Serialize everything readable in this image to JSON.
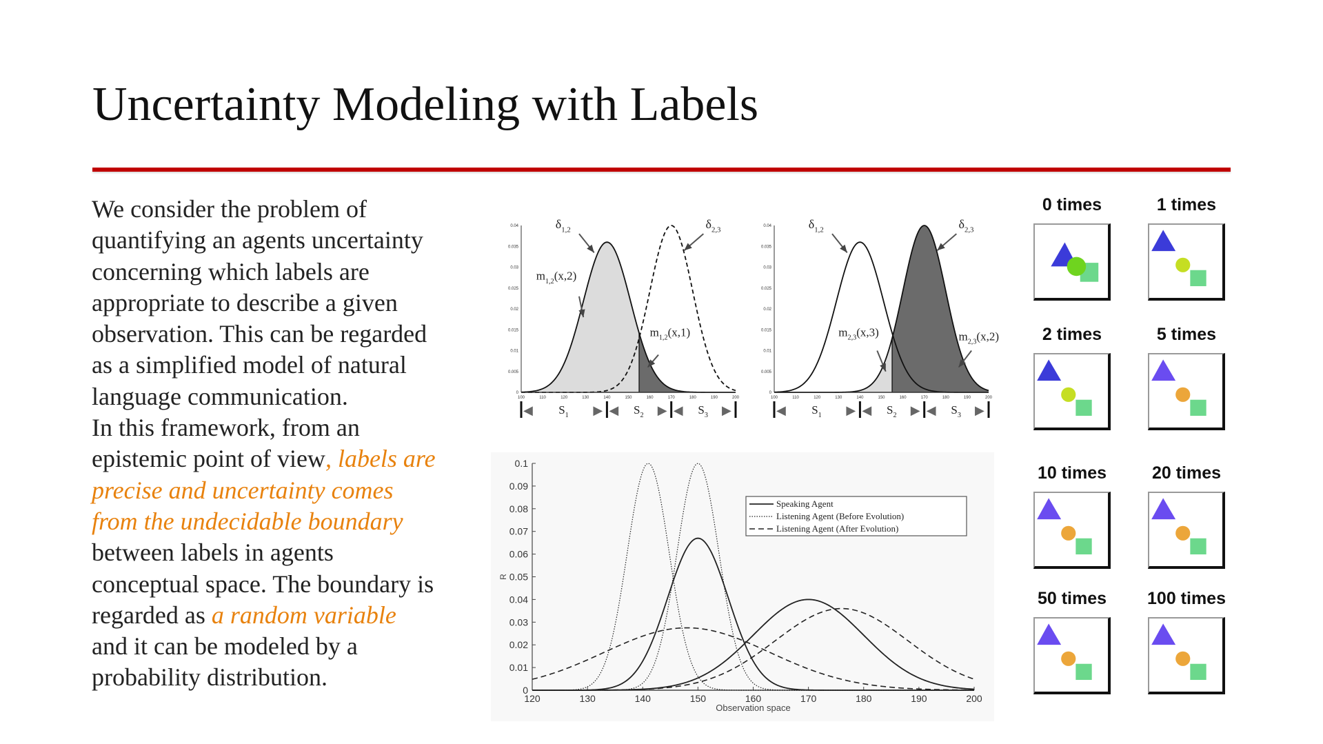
{
  "slide": {
    "title": "Uncertainty Modeling with Labels",
    "accent_color": "#c00000",
    "highlight_color": "#e8820e",
    "body_lines": [
      [
        {
          "t": "We consider the problem of"
        }
      ],
      [
        {
          "t": "quantifying an agents uncertainty"
        }
      ],
      [
        {
          "t": "concerning which labels are"
        }
      ],
      [
        {
          "t": "appropriate to describe a given"
        }
      ],
      [
        {
          "t": "observation. This can be regarded"
        }
      ],
      [
        {
          "t": "as a simplified model of natural"
        }
      ],
      [
        {
          "t": "language communication."
        }
      ],
      [
        {
          "t": "In this framework, from an"
        }
      ],
      [
        {
          "t": "epistemic point of view"
        },
        {
          "t": ", labels are",
          "hl": true
        }
      ],
      [
        {
          "t": "precise and uncertainty comes",
          "hl": true
        }
      ],
      [
        {
          "t": "from the undecidable boundary",
          "hl": true
        }
      ],
      [
        {
          "t": "between labels in agents"
        }
      ],
      [
        {
          "t": "conceptual space. The boundary is"
        }
      ],
      [
        {
          "t": "regarded as "
        },
        {
          "t": "a random variable",
          "hl": true
        }
      ],
      [
        {
          "t": "and it can be modeled by a"
        }
      ],
      [
        {
          "t": "probability distribution."
        }
      ]
    ]
  },
  "chart_data": [
    {
      "type": "area",
      "xlim": [
        100,
        200
      ],
      "ylim": [
        0,
        0.04
      ],
      "xticks": [
        "100",
        "110",
        "120",
        "130",
        "140",
        "150",
        "160",
        "170",
        "180",
        "190",
        "200"
      ],
      "yticks": [
        "0",
        "0.005",
        "0.01",
        "0.015",
        "0.02",
        "0.025",
        "0.03",
        "0.035",
        "0.04"
      ],
      "boundary": 155,
      "curves": [
        {
          "name": "δ1,2",
          "mean": 140,
          "sd": 11,
          "peak": 0.036,
          "style": "solid"
        },
        {
          "name": "δ2,3",
          "mean": 170,
          "sd": 10,
          "peak": 0.04,
          "style": "dashed"
        }
      ],
      "annotations": [
        {
          "base": "δ",
          "sub": "1,2"
        },
        {
          "base": "δ",
          "sub": "2,3"
        },
        {
          "base": "m",
          "sub": "1,2",
          "arg": "(x,2)"
        },
        {
          "base": "m",
          "sub": "1,2",
          "arg": "(x,1)"
        }
      ],
      "segments": [
        {
          "base": "S",
          "sub": "1"
        },
        {
          "base": "S",
          "sub": "2"
        },
        {
          "base": "S",
          "sub": "3"
        }
      ],
      "segment_bounds": [
        100,
        140,
        170,
        200
      ]
    },
    {
      "type": "area",
      "xlim": [
        100,
        200
      ],
      "ylim": [
        0,
        0.04
      ],
      "xticks": [
        "100",
        "110",
        "120",
        "130",
        "140",
        "150",
        "160",
        "170",
        "180",
        "190",
        "200"
      ],
      "yticks": [
        "0",
        "0.005",
        "0.01",
        "0.015",
        "0.02",
        "0.025",
        "0.03",
        "0.035",
        "0.04"
      ],
      "boundary": 155,
      "curves": [
        {
          "name": "δ1,2",
          "mean": 140,
          "sd": 11,
          "peak": 0.036,
          "style": "solid"
        },
        {
          "name": "δ2,3",
          "mean": 170,
          "sd": 10,
          "peak": 0.04,
          "style": "solid"
        }
      ],
      "annotations": [
        {
          "base": "δ",
          "sub": "1,2"
        },
        {
          "base": "δ",
          "sub": "2,3"
        },
        {
          "base": "m",
          "sub": "2,3",
          "arg": "(x,3)"
        },
        {
          "base": "m",
          "sub": "2,3",
          "arg": "(x,2)"
        }
      ],
      "segments": [
        {
          "base": "S",
          "sub": "1"
        },
        {
          "base": "S",
          "sub": "2"
        },
        {
          "base": "S",
          "sub": "3"
        }
      ],
      "segment_bounds": [
        100,
        140,
        170,
        200
      ]
    },
    {
      "type": "line",
      "xlabel": "Observation space",
      "ylabel": "R",
      "xlim": [
        120,
        200
      ],
      "ylim": [
        0,
        0.1
      ],
      "xticks": [
        "120",
        "130",
        "140",
        "150",
        "160",
        "170",
        "180",
        "190",
        "200"
      ],
      "yticks": [
        "0",
        "0.01",
        "0.02",
        "0.03",
        "0.04",
        "0.05",
        "0.06",
        "0.07",
        "0.08",
        "0.09",
        "0.1"
      ],
      "legend_position": "top-right",
      "series": [
        {
          "name": "Speaking Agent",
          "style": "solid",
          "curves": [
            {
              "mean": 150,
              "sd": 5.5,
              "peak": 0.067
            },
            {
              "mean": 170,
              "sd": 10,
              "peak": 0.04
            }
          ]
        },
        {
          "name": "Listening Agent (Before Evolution)",
          "style": "dotted",
          "curves": [
            {
              "mean": 141,
              "sd": 3.8,
              "peak": 0.1
            },
            {
              "mean": 150,
              "sd": 3.8,
              "peak": 0.1
            }
          ]
        },
        {
          "name": "Listening Agent (After Evolution)",
          "style": "dashed",
          "curves": [
            {
              "mean": 148,
              "sd": 15,
              "peak": 0.0275
            },
            {
              "mean": 176,
              "sd": 12,
              "peak": 0.036
            }
          ]
        }
      ]
    }
  ],
  "evolution_grid": {
    "colors": {
      "triangle_early": "#3b3bd9",
      "triangle_late": "#6a4cf0",
      "square": "#6cd88c"
    },
    "items": [
      {
        "label": "0 times",
        "circle_color": "#6fd41f",
        "overlap": true
      },
      {
        "label": "1 times",
        "circle_color": "#c5de23"
      },
      {
        "label": "2 times",
        "circle_color": "#c5de23"
      },
      {
        "label": "5 times",
        "circle_color": "#eca63a"
      },
      {
        "label": "10 times",
        "circle_color": "#eca63a"
      },
      {
        "label": "20 times",
        "circle_color": "#eca63a"
      },
      {
        "label": "50 times",
        "circle_color": "#eca63a"
      },
      {
        "label": "100 times",
        "circle_color": "#eca63a"
      }
    ]
  }
}
